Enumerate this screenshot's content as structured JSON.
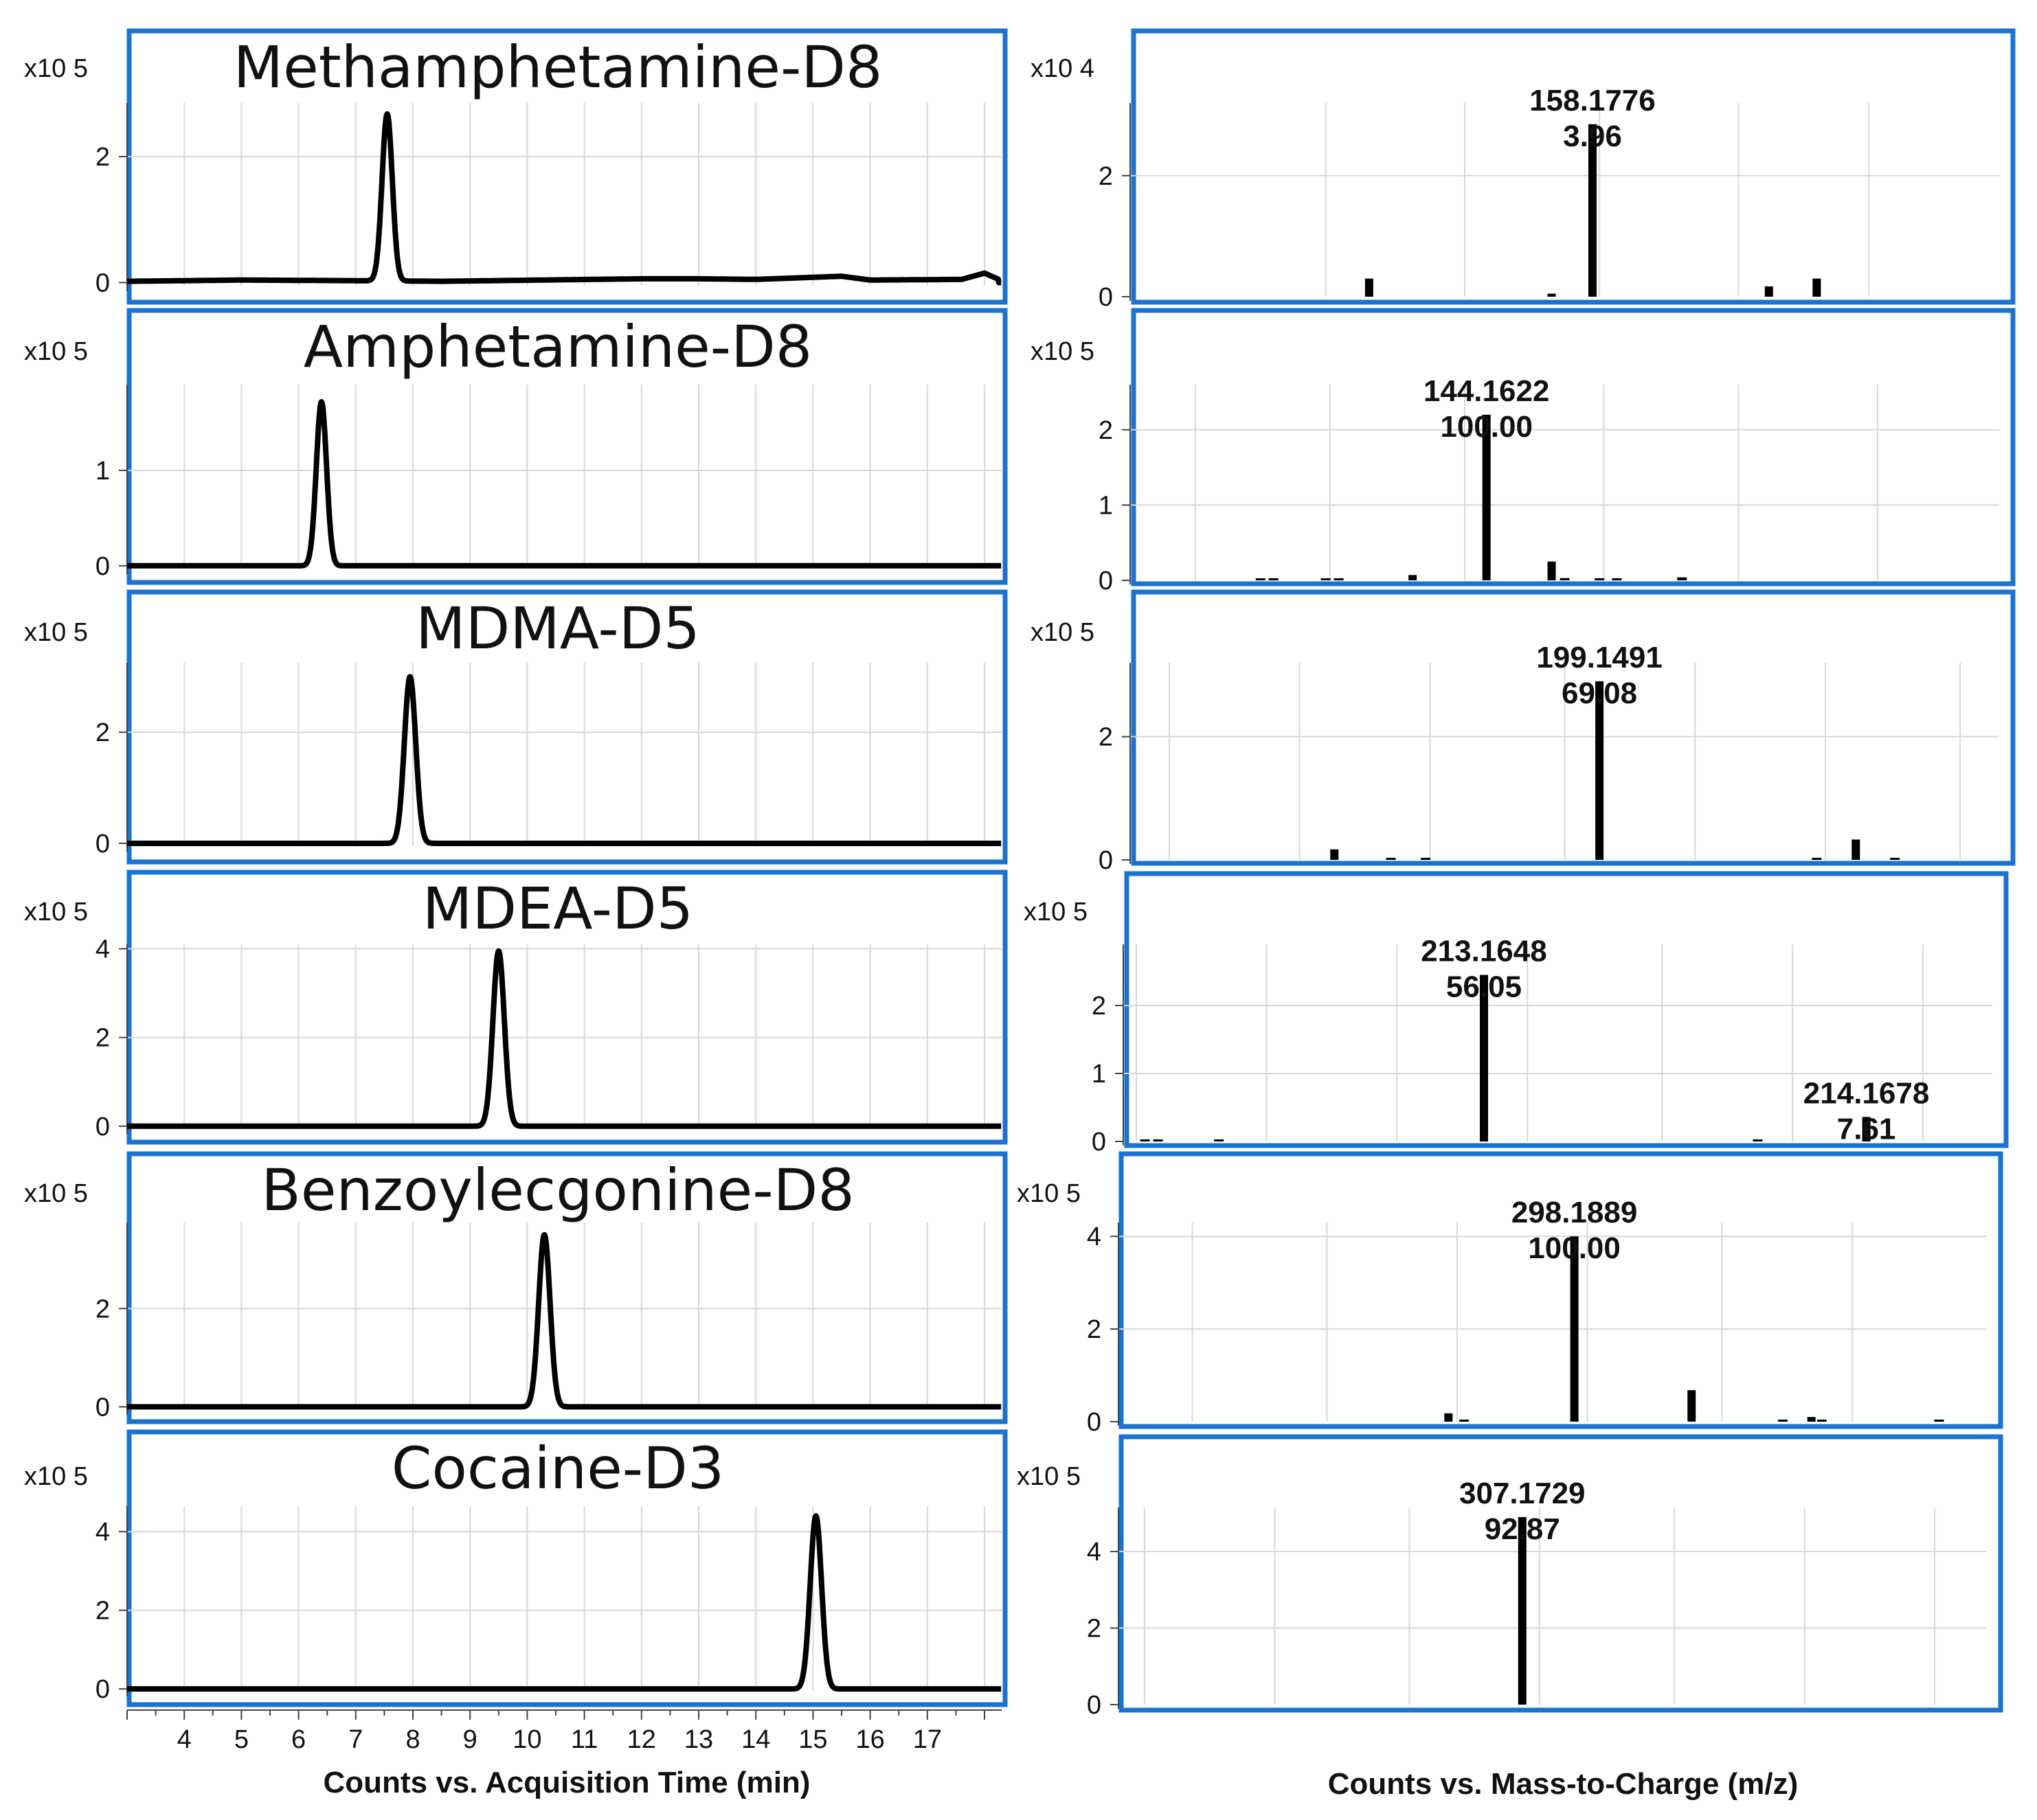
{
  "colors": {
    "frame": "#1a73d1",
    "grid": "#d8d8d8",
    "trace": "#000000",
    "text": "#111111"
  },
  "left_xlabel": "Counts vs. Acquisition Time (min)",
  "right_xlabel": "Counts vs. Mass-to-Charge (m/z)",
  "time_ticks": [
    4,
    5,
    6,
    7,
    8,
    9,
    10,
    11,
    12,
    13,
    14,
    15,
    16,
    17
  ],
  "chart_data": [
    {
      "type": "line",
      "title": "Methamphetamine-D8",
      "ylabel": "x10 5",
      "xlim": [
        3.0,
        18.3
      ],
      "ylim": [
        -0.05,
        2.85
      ],
      "yticks": [
        0,
        2
      ],
      "peak": {
        "x": 7.55,
        "height": 2.65,
        "width": 0.09
      },
      "noise": [
        [
          3.0,
          0.02
        ],
        [
          5.0,
          0.04
        ],
        [
          7.0,
          0.03
        ],
        [
          8.5,
          0.02
        ],
        [
          12.0,
          0.06
        ],
        [
          13.0,
          0.06
        ],
        [
          14.0,
          0.05
        ],
        [
          15.5,
          0.1
        ],
        [
          16.0,
          0.04
        ],
        [
          17.6,
          0.05
        ],
        [
          18.0,
          0.15
        ],
        [
          18.25,
          0.05
        ]
      ]
    },
    {
      "type": "line",
      "title": "Amphetamine-D8",
      "ylabel": "x10 5",
      "xlim": [
        3.0,
        18.3
      ],
      "ylim": [
        -0.03,
        1.9
      ],
      "yticks": [
        0,
        1
      ],
      "peak": {
        "x": 6.4,
        "height": 1.72,
        "width": 0.09
      },
      "noise": []
    },
    {
      "type": "line",
      "title": "MDMA-D5",
      "ylabel": "x10 5",
      "xlim": [
        3.0,
        18.3
      ],
      "ylim": [
        -0.05,
        3.25
      ],
      "yticks": [
        0,
        2
      ],
      "peak": {
        "x": 7.95,
        "height": 3.0,
        "width": 0.1
      },
      "noise": []
    },
    {
      "type": "line",
      "title": "MDEA-D5",
      "ylabel": "x10 5",
      "xlim": [
        3.0,
        18.3
      ],
      "ylim": [
        -0.05,
        4.1
      ],
      "yticks": [
        0,
        2,
        4
      ],
      "peak": {
        "x": 9.5,
        "height": 3.95,
        "width": 0.1
      },
      "noise": []
    },
    {
      "type": "line",
      "title": "Benzoylecgonine-D8",
      "ylabel": "x10 5",
      "xlim": [
        3.0,
        18.3
      ],
      "ylim": [
        -0.05,
        3.75
      ],
      "yticks": [
        0,
        2
      ],
      "peak": {
        "x": 10.3,
        "height": 3.5,
        "width": 0.1
      },
      "noise": []
    },
    {
      "type": "line",
      "title": "Cocaine-D3",
      "ylabel": "x10 5",
      "xlim": [
        3.0,
        18.3
      ],
      "ylim": [
        -0.05,
        4.65
      ],
      "yticks": [
        0,
        2,
        4
      ],
      "peak": {
        "x": 15.05,
        "height": 4.4,
        "width": 0.1
      },
      "noise": []
    },
    {
      "type": "bar",
      "ylabel": "x10 4",
      "xlim": [
        0,
        100
      ],
      "ylim": [
        0,
        3.2
      ],
      "yticks": [
        0,
        2
      ],
      "grid_x": [
        22.5,
        38.5,
        54,
        70,
        85
      ],
      "peaks": [
        [
          27.5,
          0.3
        ],
        [
          48.5,
          0.05
        ],
        [
          53.2,
          2.85
        ],
        [
          73.5,
          0.17
        ],
        [
          79,
          0.3
        ]
      ],
      "labels": [
        {
          "x": 53.2,
          "mz": "158.1776",
          "pct": "3.96"
        }
      ]
    },
    {
      "type": "bar",
      "ylabel": "x10 5",
      "xlim": [
        0,
        100
      ],
      "ylim": [
        0,
        2.6
      ],
      "yticks": [
        0,
        1,
        2
      ],
      "grid_x": [
        7.5,
        23,
        38.5,
        54.5,
        70,
        86
      ],
      "peaks": [
        [
          15,
          0.02
        ],
        [
          16.5,
          0.02
        ],
        [
          22.5,
          0.02
        ],
        [
          24,
          0.02
        ],
        [
          32.5,
          0.07
        ],
        [
          41,
          2.2
        ],
        [
          48.5,
          0.25
        ],
        [
          50,
          0.03
        ],
        [
          54,
          0.02
        ],
        [
          56,
          0.02
        ],
        [
          63.5,
          0.04
        ]
      ],
      "labels": [
        {
          "x": 41,
          "mz": "144.1622",
          "pct": "100.00"
        }
      ]
    },
    {
      "type": "bar",
      "ylabel": "x10 5",
      "xlim": [
        0,
        100
      ],
      "ylim": [
        0,
        3.2
      ],
      "yticks": [
        0,
        2
      ],
      "grid_x": [
        4.5,
        19.5,
        34.5,
        50,
        65,
        80,
        95.5
      ],
      "peaks": [
        [
          23.5,
          0.17
        ],
        [
          30,
          0.02
        ],
        [
          34,
          0.02
        ],
        [
          54,
          2.9
        ],
        [
          79,
          0.02
        ],
        [
          83.5,
          0.33
        ],
        [
          88,
          0.02
        ]
      ],
      "labels": [
        {
          "x": 54,
          "mz": "199.1491",
          "pct": "69.08"
        }
      ]
    },
    {
      "type": "bar",
      "ylabel": "x10 5",
      "xlim": [
        0,
        100
      ],
      "ylim": [
        0,
        2.9
      ],
      "yticks": [
        0,
        1,
        2
      ],
      "grid_x": [
        1.5,
        16.5,
        31.5,
        46.5,
        62,
        77,
        92
      ],
      "peaks": [
        [
          2.5,
          0.02
        ],
        [
          4,
          0.02
        ],
        [
          11,
          0.02
        ],
        [
          41.5,
          2.45
        ],
        [
          73,
          0.02
        ],
        [
          85.5,
          0.36
        ]
      ],
      "labels": [
        {
          "x": 41.5,
          "mz": "213.1648",
          "pct": "56.05"
        },
        {
          "x": 85.5,
          "mz": "214.1678",
          "pct": "7.61"
        }
      ]
    },
    {
      "type": "bar",
      "ylabel": "x10 5",
      "xlim": [
        0,
        100
      ],
      "ylim": [
        0,
        4.3
      ],
      "yticks": [
        0,
        2,
        4
      ],
      "grid_x": [
        8.5,
        24,
        39,
        54,
        69.5,
        84.5
      ],
      "peaks": [
        [
          38,
          0.18
        ],
        [
          39.8,
          0.03
        ],
        [
          52.5,
          4.0
        ],
        [
          66,
          0.68
        ],
        [
          76.5,
          0.03
        ],
        [
          79.8,
          0.1
        ],
        [
          81,
          0.02
        ],
        [
          94.5,
          0.02
        ]
      ],
      "labels": [
        {
          "x": 52.5,
          "mz": "298.1889",
          "pct": "100.00"
        }
      ]
    },
    {
      "type": "bar",
      "ylabel": "x10 5",
      "xlim": [
        0,
        100
      ],
      "ylim": [
        0,
        5.15
      ],
      "yticks": [
        0,
        2,
        4
      ],
      "grid_x": [
        3,
        18,
        33.5,
        48.5,
        64,
        79,
        94
      ],
      "peaks": [
        [
          46.5,
          4.9
        ]
      ],
      "labels": [
        {
          "x": 46.5,
          "mz": "307.1729",
          "pct": "92.87"
        }
      ]
    }
  ]
}
